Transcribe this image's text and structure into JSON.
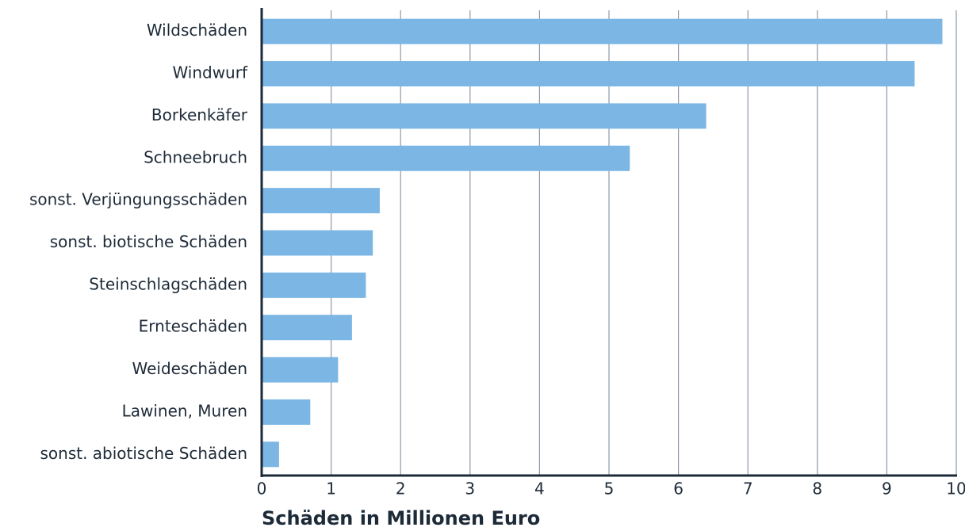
{
  "chart_data": {
    "type": "bar",
    "orientation": "horizontal",
    "x_label": "Schäden in Millionen Euro",
    "categories": [
      "Wildschäden",
      "Windwurf",
      "Borkenkäfer",
      "Schneebruch",
      "sonst. Verjüngungsschäden",
      "sonst. biotische Schäden",
      "Steinschlagschäden",
      "Ernteschäden",
      "Weideschäden",
      "Lawinen, Muren",
      "sonst. abiotische Schäden"
    ],
    "values": [
      9.8,
      9.4,
      6.4,
      5.3,
      1.7,
      1.6,
      1.5,
      1.3,
      1.1,
      0.7,
      0.25
    ],
    "color": "#7bb6e4",
    "xlim": [
      0,
      10
    ],
    "xticks": [
      0,
      1,
      2,
      3,
      4,
      5,
      6,
      7,
      8,
      9,
      10
    ],
    "grid": true
  }
}
